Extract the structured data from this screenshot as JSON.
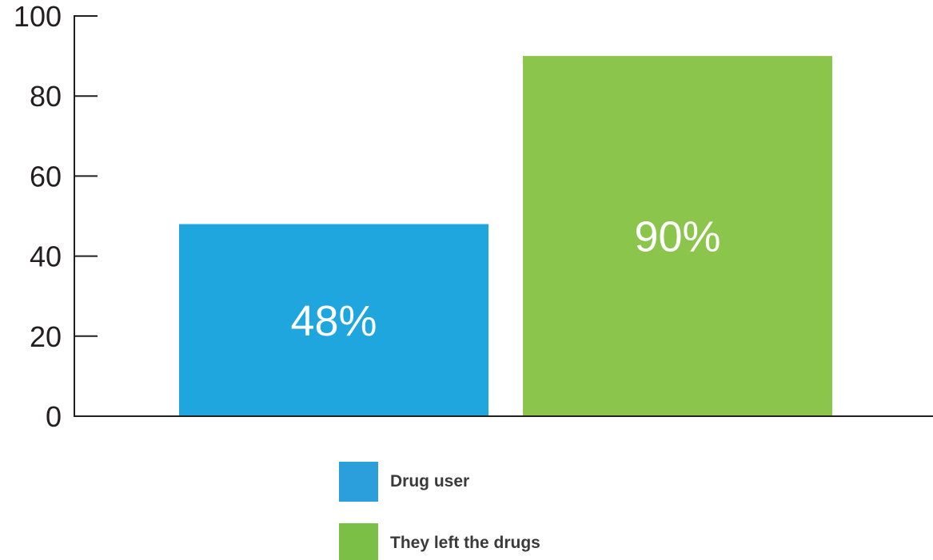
{
  "chart_data": {
    "type": "bar",
    "categories": [
      "Drug user",
      "They left the drugs"
    ],
    "values": [
      48,
      90
    ],
    "data_labels": [
      "48%",
      "90%"
    ],
    "colors": [
      "#1fa6df",
      "#8bc54b"
    ],
    "legend_colors": [
      "#2a9fdc",
      "#7bbf47"
    ],
    "ylim": [
      0,
      100
    ],
    "yticks": [
      0,
      20,
      40,
      60,
      80,
      100
    ],
    "title": "",
    "xlabel": "",
    "ylabel": "",
    "legend": {
      "placement": "bottom-center",
      "entries": [
        "Drug user",
        "They left the drugs"
      ]
    },
    "grid": false
  }
}
